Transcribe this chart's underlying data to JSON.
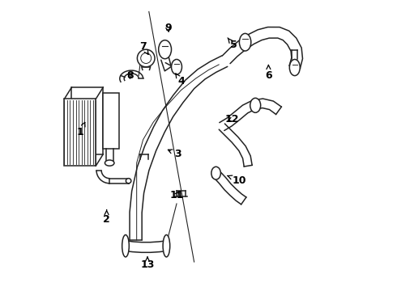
{
  "background_color": "#ffffff",
  "line_color": "#222222",
  "label_color": "#000000",
  "font_size": 9,
  "font_weight": "bold",
  "figw": 4.9,
  "figh": 3.6,
  "dpi": 100,
  "labels": {
    "1": [
      0.095,
      0.545,
      0.115,
      0.59
    ],
    "2": [
      0.185,
      0.245,
      0.185,
      0.28
    ],
    "3": [
      0.43,
      0.47,
      0.385,
      0.49
    ],
    "4": [
      0.44,
      0.72,
      0.42,
      0.75
    ],
    "5": [
      0.62,
      0.845,
      0.6,
      0.87
    ],
    "6": [
      0.74,
      0.74,
      0.74,
      0.78
    ],
    "7": [
      0.31,
      0.84,
      0.33,
      0.81
    ],
    "8": [
      0.265,
      0.74,
      0.265,
      0.72
    ],
    "9": [
      0.395,
      0.905,
      0.4,
      0.88
    ],
    "10": [
      0.64,
      0.38,
      0.59,
      0.4
    ],
    "11": [
      0.425,
      0.33,
      0.44,
      0.35
    ],
    "12": [
      0.615,
      0.59,
      0.59,
      0.58
    ],
    "13": [
      0.325,
      0.09,
      0.325,
      0.12
    ]
  }
}
